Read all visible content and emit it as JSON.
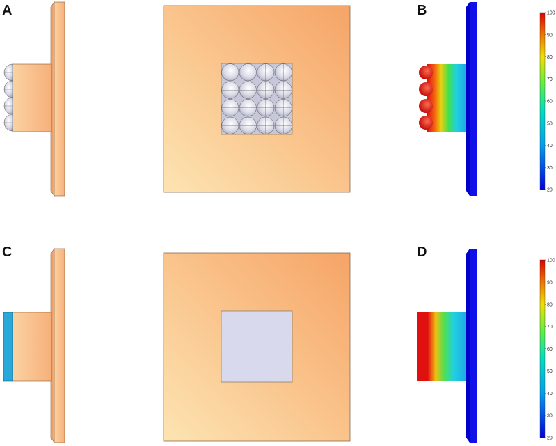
{
  "panels": [
    {
      "letter": "A"
    },
    {
      "letter": "B"
    },
    {
      "letter": "C"
    },
    {
      "letter": "D"
    }
  ],
  "colorbar_top": {
    "min": 20,
    "max": 100,
    "ticks": [
      "100",
      "90",
      "80",
      "70",
      "60",
      "50",
      "40",
      "30",
      "20"
    ]
  },
  "colorbar_bottom": {
    "min": 20,
    "max": 100,
    "ticks": [
      "100",
      "90",
      "80",
      "70",
      "60",
      "50",
      "40",
      "30",
      "20"
    ]
  },
  "colors": {
    "plate": "#f7b37c",
    "sink_face": "#f5c08a",
    "sphere": "#d8dae8",
    "wick_layer": "#2aa8d8",
    "flat_wick": "#d9d9ee",
    "cold_blue": "#1010e8",
    "hot_red": "#e01010"
  }
}
